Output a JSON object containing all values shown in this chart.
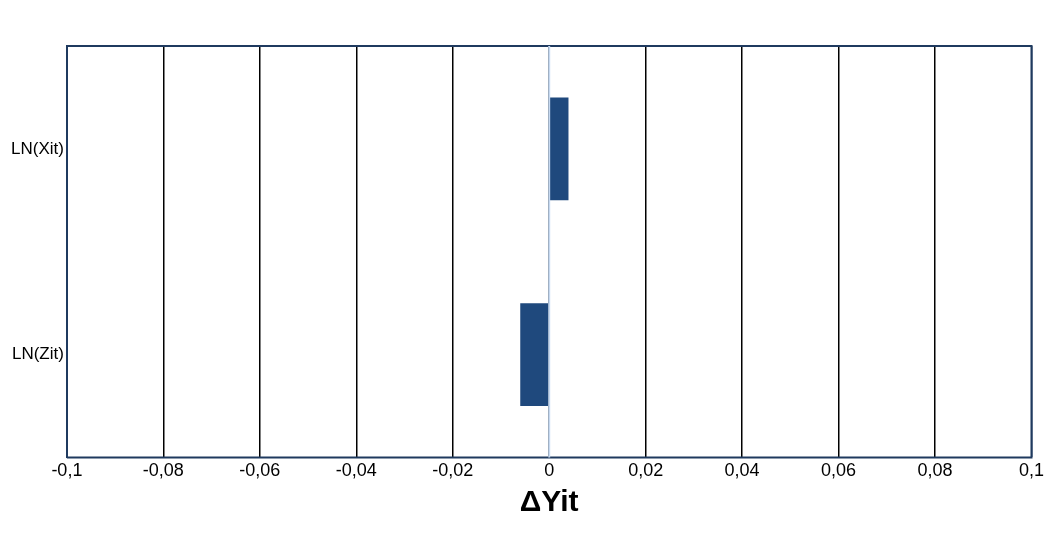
{
  "chart_data": {
    "type": "bar",
    "orientation": "horizontal",
    "xlabel": "ΔYit",
    "categories": [
      "LN(Xit)",
      "LN(Zit)"
    ],
    "values": [
      0.004,
      -0.006
    ],
    "color": "#1f497d",
    "xlim": [
      -0.1,
      0.1
    ],
    "xticks": [
      {
        "value": -0.1,
        "label": "-0,1"
      },
      {
        "value": -0.08,
        "label": "-0,08"
      },
      {
        "value": -0.06,
        "label": "-0,06"
      },
      {
        "value": -0.04,
        "label": "-0,04"
      },
      {
        "value": -0.02,
        "label": "-0,02"
      },
      0,
      {
        "value": 0.02,
        "label": "0,02"
      },
      {
        "value": 0.04,
        "label": "0,04"
      },
      {
        "value": 0.06,
        "label": "0,06"
      },
      {
        "value": 0.08,
        "label": "0,08"
      },
      {
        "value": 0.1,
        "label": "0,1"
      }
    ],
    "grid": "x",
    "legend": false,
    "ref_lines": [
      {
        "axis": "x",
        "value": 0,
        "color": "#c6d9f1"
      }
    ]
  }
}
